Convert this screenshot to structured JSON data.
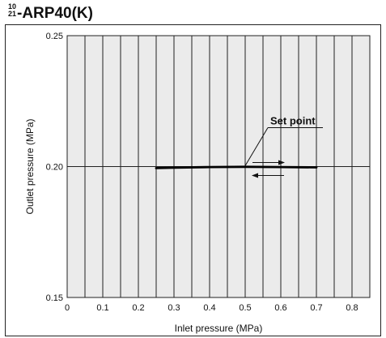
{
  "title": {
    "superscript": "10",
    "subscript": "21",
    "text": "-ARP40(K)"
  },
  "chart_data": {
    "type": "line",
    "xlabel": "Inlet pressure (MPa)",
    "ylabel": "Outlet pressure  (MPa)",
    "xlim": [
      0,
      0.85
    ],
    "ylim": [
      0.15,
      0.25
    ],
    "x_ticks": [
      "0",
      "0.1",
      "0.2",
      "0.3",
      "0.4",
      "0.5",
      "0.6",
      "0.7",
      "0.8"
    ],
    "y_ticks": [
      "0.15",
      "0.20",
      "0.25"
    ],
    "grid": "vertical lines at every 0.05 MPa; horizontal reference at 0.20",
    "series": [
      {
        "x": [
          0.25,
          0.3,
          0.4,
          0.5,
          0.6,
          0.7
        ],
        "y": [
          0.1994,
          0.1996,
          0.1998,
          0.1999,
          0.1998,
          0.1997
        ]
      }
    ],
    "annotations": [
      {
        "text": "Set point",
        "x": 0.5,
        "y": 0.2
      }
    ],
    "colors": {
      "plot_background": "#ebebeb",
      "line": "#000000"
    }
  }
}
